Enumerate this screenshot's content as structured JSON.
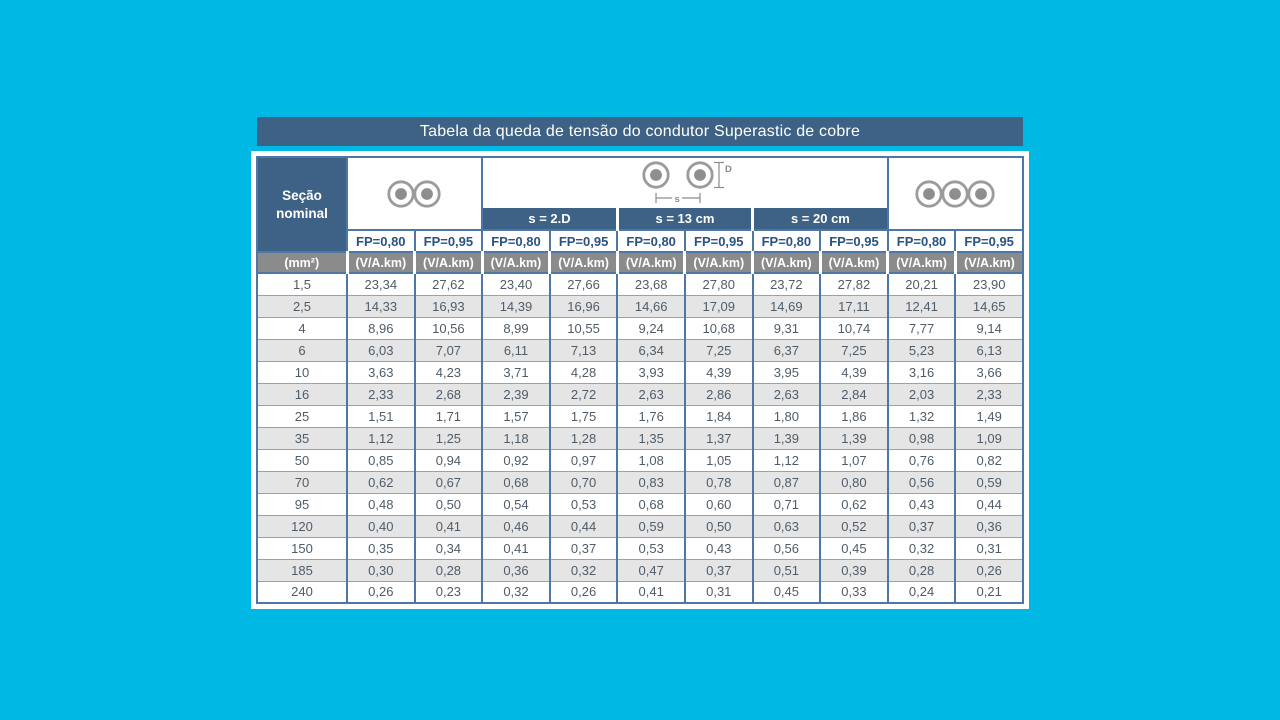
{
  "title": "Tabela da queda de tensão do condutor Superastic de cobre",
  "table": {
    "section_header": "Seção nominal",
    "section_unit": "(mm²)",
    "spacing_headers": [
      "s = 2.D",
      "s = 13 cm",
      "s = 20 cm"
    ],
    "fp_labels": [
      "FP=0,80",
      "FP=0,95"
    ],
    "unit_label": "(V/A.km)",
    "dimension_labels": {
      "s": "s",
      "D": "D"
    },
    "icons": [
      "two-conductors-touching",
      "two-conductors-spaced-with-dimensions",
      "three-conductors-touching"
    ],
    "rows": [
      {
        "section": "1,5",
        "values": [
          "23,34",
          "27,62",
          "23,40",
          "27,66",
          "23,68",
          "27,80",
          "23,72",
          "27,82",
          "20,21",
          "23,90"
        ]
      },
      {
        "section": "2,5",
        "values": [
          "14,33",
          "16,93",
          "14,39",
          "16,96",
          "14,66",
          "17,09",
          "14,69",
          "17,11",
          "12,41",
          "14,65"
        ]
      },
      {
        "section": "4",
        "values": [
          "8,96",
          "10,56",
          "8,99",
          "10,55",
          "9,24",
          "10,68",
          "9,31",
          "10,74",
          "7,77",
          "9,14"
        ]
      },
      {
        "section": "6",
        "values": [
          "6,03",
          "7,07",
          "6,11",
          "7,13",
          "6,34",
          "7,25",
          "6,37",
          "7,25",
          "5,23",
          "6,13"
        ]
      },
      {
        "section": "10",
        "values": [
          "3,63",
          "4,23",
          "3,71",
          "4,28",
          "3,93",
          "4,39",
          "3,95",
          "4,39",
          "3,16",
          "3,66"
        ]
      },
      {
        "section": "16",
        "values": [
          "2,33",
          "2,68",
          "2,39",
          "2,72",
          "2,63",
          "2,86",
          "2,63",
          "2,84",
          "2,03",
          "2,33"
        ]
      },
      {
        "section": "25",
        "values": [
          "1,51",
          "1,71",
          "1,57",
          "1,75",
          "1,76",
          "1,84",
          "1,80",
          "1,86",
          "1,32",
          "1,49"
        ]
      },
      {
        "section": "35",
        "values": [
          "1,12",
          "1,25",
          "1,18",
          "1,28",
          "1,35",
          "1,37",
          "1,39",
          "1,39",
          "0,98",
          "1,09"
        ]
      },
      {
        "section": "50",
        "values": [
          "0,85",
          "0,94",
          "0,92",
          "0,97",
          "1,08",
          "1,05",
          "1,12",
          "1,07",
          "0,76",
          "0,82"
        ]
      },
      {
        "section": "70",
        "values": [
          "0,62",
          "0,67",
          "0,68",
          "0,70",
          "0,83",
          "0,78",
          "0,87",
          "0,80",
          "0,56",
          "0,59"
        ]
      },
      {
        "section": "95",
        "values": [
          "0,48",
          "0,50",
          "0,54",
          "0,53",
          "0,68",
          "0,60",
          "0,71",
          "0,62",
          "0,43",
          "0,44"
        ]
      },
      {
        "section": "120",
        "values": [
          "0,40",
          "0,41",
          "0,46",
          "0,44",
          "0,59",
          "0,50",
          "0,63",
          "0,52",
          "0,37",
          "0,36"
        ]
      },
      {
        "section": "150",
        "values": [
          "0,35",
          "0,34",
          "0,41",
          "0,37",
          "0,53",
          "0,43",
          "0,56",
          "0,45",
          "0,32",
          "0,31"
        ]
      },
      {
        "section": "185",
        "values": [
          "0,30",
          "0,28",
          "0,36",
          "0,32",
          "0,47",
          "0,37",
          "0,51",
          "0,39",
          "0,28",
          "0,26"
        ]
      },
      {
        "section": "240",
        "values": [
          "0,26",
          "0,23",
          "0,32",
          "0,26",
          "0,41",
          "0,31",
          "0,45",
          "0,33",
          "0,24",
          "0,21"
        ]
      }
    ]
  },
  "colors": {
    "background": "#00b8e4",
    "header": "#3e6285",
    "border": "#4d77a6",
    "units_bg": "#8b8b8b",
    "stripe": "#e5e5e6",
    "fp_text": "#2a5282",
    "data_text": "#4f5c68"
  }
}
